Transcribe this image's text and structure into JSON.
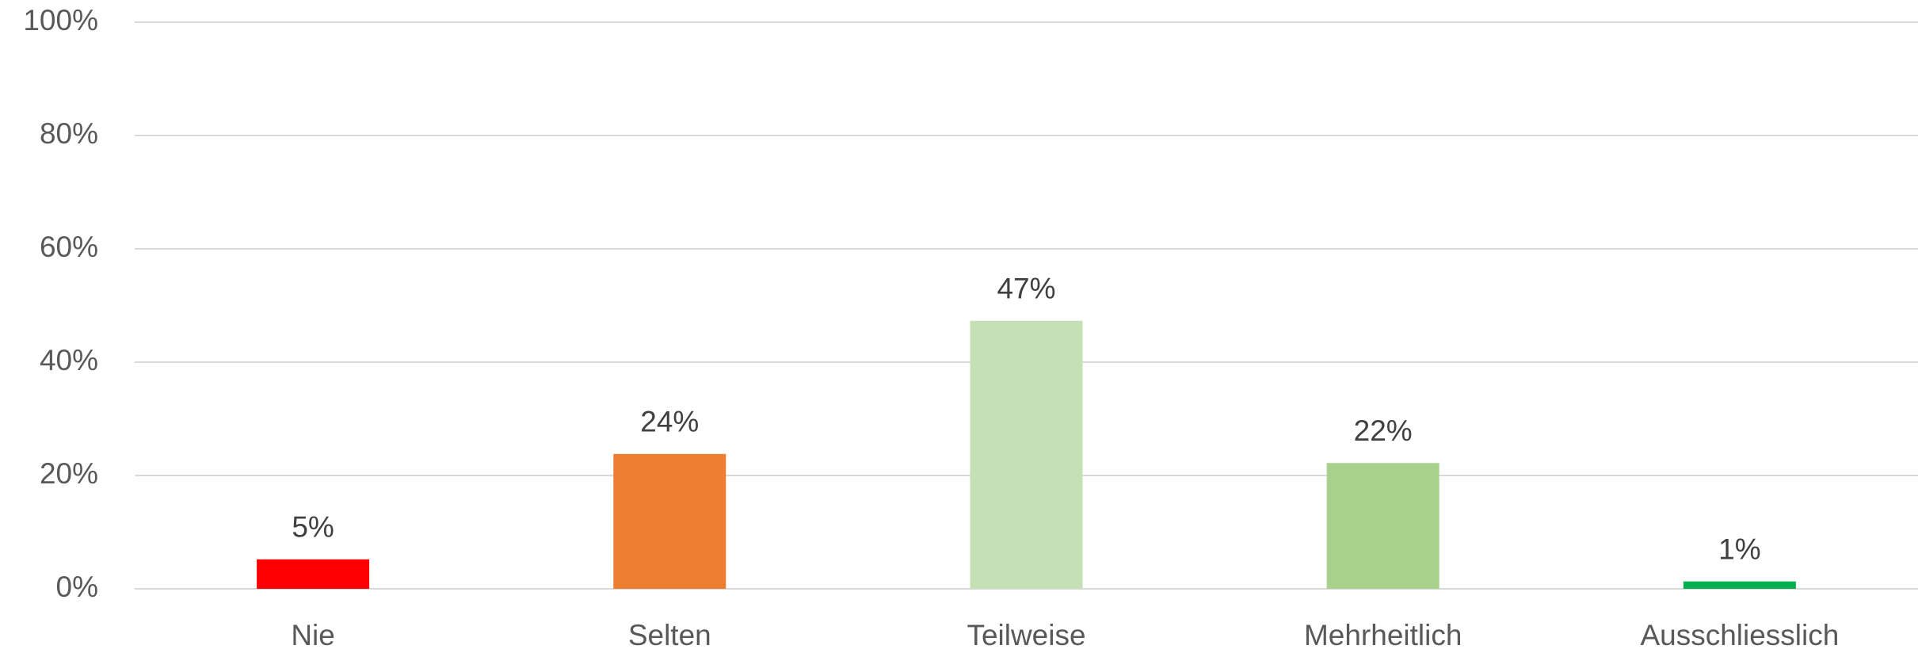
{
  "chart_data": {
    "type": "bar",
    "categories": [
      "Nie",
      "Selten",
      "Teilweise",
      "Mehrheitlich",
      "Ausschliesslich"
    ],
    "values": [
      5.2,
      23.8,
      47.3,
      22.2,
      1.3
    ],
    "value_labels": [
      "5%",
      "24%",
      "47%",
      "22%",
      "1%"
    ],
    "colors": [
      "#ff0000",
      "#ed7d31",
      "#c5e0b4",
      "#a9d18e",
      "#00b050"
    ],
    "ylim": [
      0,
      100
    ],
    "yticks": [
      {
        "value": 0,
        "label": "0%"
      },
      {
        "value": 20,
        "label": "20%"
      },
      {
        "value": 40,
        "label": "40%"
      },
      {
        "value": 60,
        "label": "60%"
      },
      {
        "value": 80,
        "label": "80%"
      },
      {
        "value": 100,
        "label": "100%"
      }
    ],
    "grid": true
  }
}
